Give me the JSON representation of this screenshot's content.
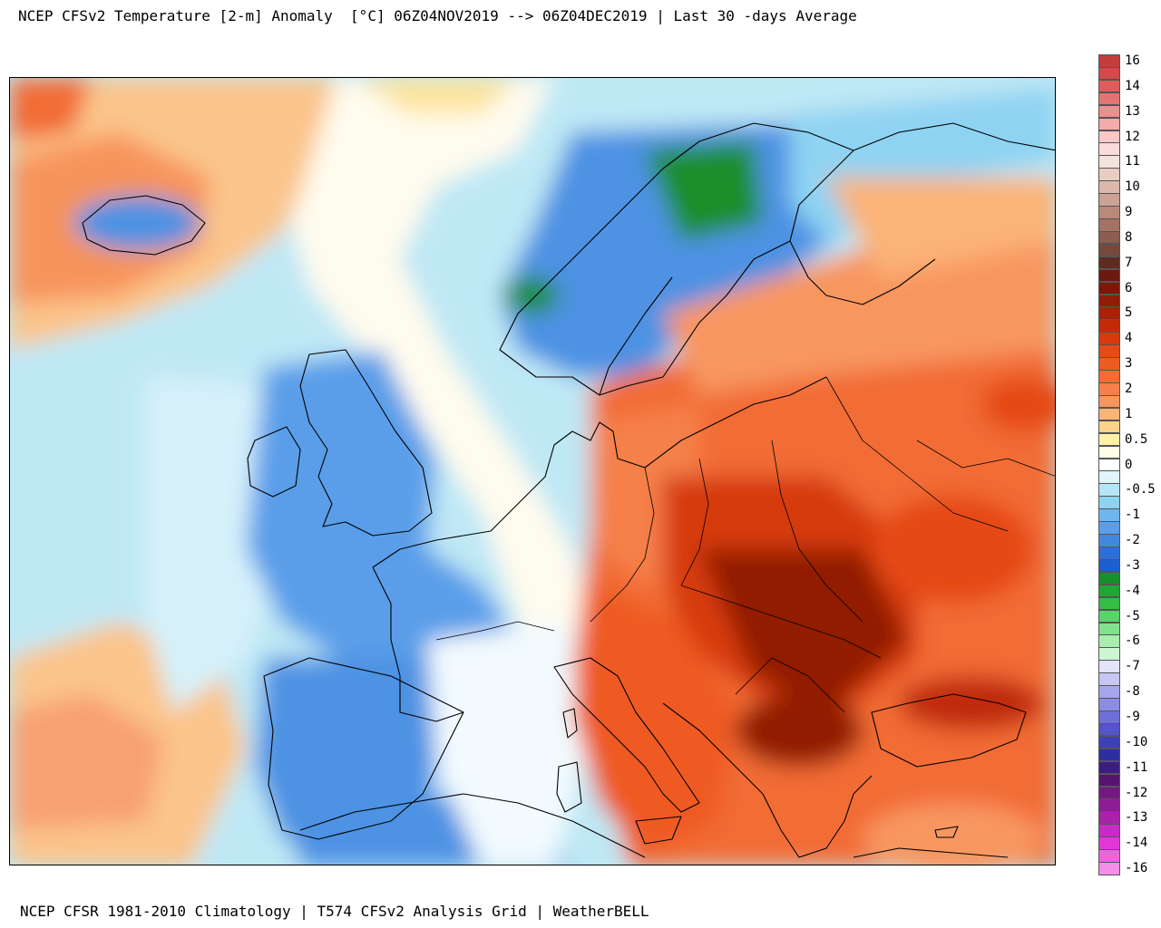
{
  "header": {
    "title": "NCEP CFSv2 Temperature [2-m] Anomaly  [°C] 06Z04NOV2019 --> 06Z04DEC2019 | Last 30 -days Average"
  },
  "footer": {
    "credits": "NCEP CFSR 1981-2010 Climatology | T574 CFSv2 Analysis Grid | WeatherBELL"
  },
  "legend": {
    "unit": "°C",
    "entries": [
      {
        "label": "16",
        "color": "#c43c3c"
      },
      {
        "label": "",
        "color": "#d24a4a"
      },
      {
        "label": "14",
        "color": "#dd5d5d"
      },
      {
        "label": "",
        "color": "#e37474"
      },
      {
        "label": "13",
        "color": "#ec8f8f"
      },
      {
        "label": "",
        "color": "#f3abab"
      },
      {
        "label": "12",
        "color": "#f8c8c8"
      },
      {
        "label": "",
        "color": "#fbdada"
      },
      {
        "label": "11",
        "color": "#f4e2dc"
      },
      {
        "label": "",
        "color": "#e8cdc3"
      },
      {
        "label": "10",
        "color": "#dcb8ab"
      },
      {
        "label": "",
        "color": "#cba293"
      },
      {
        "label": "9",
        "color": "#b88a7b"
      },
      {
        "label": "",
        "color": "#a37364"
      },
      {
        "label": "8",
        "color": "#8c5d50"
      },
      {
        "label": "",
        "color": "#76493d"
      },
      {
        "label": "7",
        "color": "#5e2b1f"
      },
      {
        "label": "",
        "color": "#6a1a0e"
      },
      {
        "label": "6",
        "color": "#7c1808"
      },
      {
        "label": "",
        "color": "#921c06"
      },
      {
        "label": "5",
        "color": "#a82207"
      },
      {
        "label": "",
        "color": "#c02c08"
      },
      {
        "label": "4",
        "color": "#d63a0d"
      },
      {
        "label": "",
        "color": "#e54a17"
      },
      {
        "label": "3",
        "color": "#ee5a22"
      },
      {
        "label": "",
        "color": "#f26c34"
      },
      {
        "label": "2",
        "color": "#f5804a"
      },
      {
        "label": "",
        "color": "#f89660"
      },
      {
        "label": "1",
        "color": "#fbb377"
      },
      {
        "label": "",
        "color": "#fdd28f"
      },
      {
        "label": "0.5",
        "color": "#fff2a8"
      },
      {
        "label": "",
        "color": "#fffde4"
      },
      {
        "label": "0",
        "color": "#ffffff"
      },
      {
        "label": "",
        "color": "#dff4fb"
      },
      {
        "label": "-0.5",
        "color": "#b5e6f7"
      },
      {
        "label": "",
        "color": "#8fd3f2"
      },
      {
        "label": "-1",
        "color": "#70b6ee"
      },
      {
        "label": "",
        "color": "#5a9ee9"
      },
      {
        "label": "-2",
        "color": "#4288e0"
      },
      {
        "label": "",
        "color": "#2c70d7"
      },
      {
        "label": "-3",
        "color": "#1c5fcd"
      },
      {
        "label": "",
        "color": "#15902a"
      },
      {
        "label": "-4",
        "color": "#20a634"
      },
      {
        "label": "",
        "color": "#36bd48"
      },
      {
        "label": "-5",
        "color": "#58d468"
      },
      {
        "label": "",
        "color": "#80e28c"
      },
      {
        "label": "-6",
        "color": "#a9edb0"
      },
      {
        "label": "",
        "color": "#cdf5d2"
      },
      {
        "label": "-7",
        "color": "#e3e3fb"
      },
      {
        "label": "",
        "color": "#c6c6f4"
      },
      {
        "label": "-8",
        "color": "#a6a6ec"
      },
      {
        "label": "",
        "color": "#8c8ce3"
      },
      {
        "label": "-9",
        "color": "#6f6fd6"
      },
      {
        "label": "",
        "color": "#5555c8"
      },
      {
        "label": "-10",
        "color": "#3f3fb6"
      },
      {
        "label": "",
        "color": "#2e2ea0"
      },
      {
        "label": "-11",
        "color": "#3c1e80"
      },
      {
        "label": "",
        "color": "#561470"
      },
      {
        "label": "-12",
        "color": "#721a80"
      },
      {
        "label": "",
        "color": "#8e1c94"
      },
      {
        "label": "-13",
        "color": "#aa22aa"
      },
      {
        "label": "",
        "color": "#c82cc4"
      },
      {
        "label": "-14",
        "color": "#e038d6"
      },
      {
        "label": "",
        "color": "#ee62e2"
      },
      {
        "label": "-16",
        "color": "#f48ee8"
      }
    ]
  }
}
